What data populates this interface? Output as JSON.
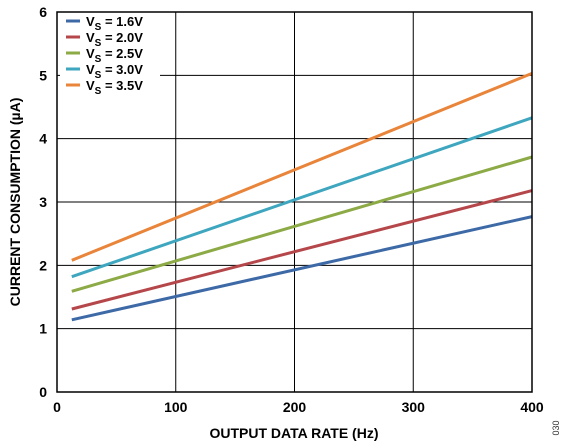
{
  "chart_data": {
    "type": "line",
    "xlabel": "OUTPUT DATA RATE (Hz)",
    "ylabel": "CURRENT CONSUMPTION (µA)",
    "xlim": [
      0,
      400
    ],
    "ylim": [
      0,
      6
    ],
    "xticks": [
      "0",
      "100",
      "200",
      "300",
      "400"
    ],
    "yticks": [
      "0",
      "1",
      "2",
      "3",
      "4",
      "5",
      "6"
    ],
    "grid": true,
    "legend_position": "top-left",
    "figure_id": "030",
    "series": [
      {
        "name": "V_S = 1.6V",
        "legend_main": "V",
        "legend_sub": "S",
        "legend_rest": " = 1.6V",
        "color": "#3d6aa6",
        "x": [
          12.5,
          400
        ],
        "y": [
          1.14,
          2.77
        ]
      },
      {
        "name": "V_S = 2.0V",
        "legend_main": "V",
        "legend_sub": "S",
        "legend_rest": " = 2.0V",
        "color": "#b5474b",
        "x": [
          12.5,
          400
        ],
        "y": [
          1.31,
          3.18
        ]
      },
      {
        "name": "V_S = 2.5V",
        "legend_main": "V",
        "legend_sub": "S",
        "legend_rest": " = 2.5V",
        "color": "#8caa45",
        "x": [
          12.5,
          400
        ],
        "y": [
          1.59,
          3.71
        ]
      },
      {
        "name": "V_S = 3.0V",
        "legend_main": "V",
        "legend_sub": "S",
        "legend_rest": " = 3.0V",
        "color": "#3ea6be",
        "x": [
          12.5,
          400
        ],
        "y": [
          1.82,
          4.33
        ]
      },
      {
        "name": "V_S = 3.5V",
        "legend_main": "V",
        "legend_sub": "S",
        "legend_rest": " = 3.5V",
        "color": "#e9853a",
        "x": [
          12.5,
          400
        ],
        "y": [
          2.08,
          5.03
        ]
      }
    ]
  }
}
